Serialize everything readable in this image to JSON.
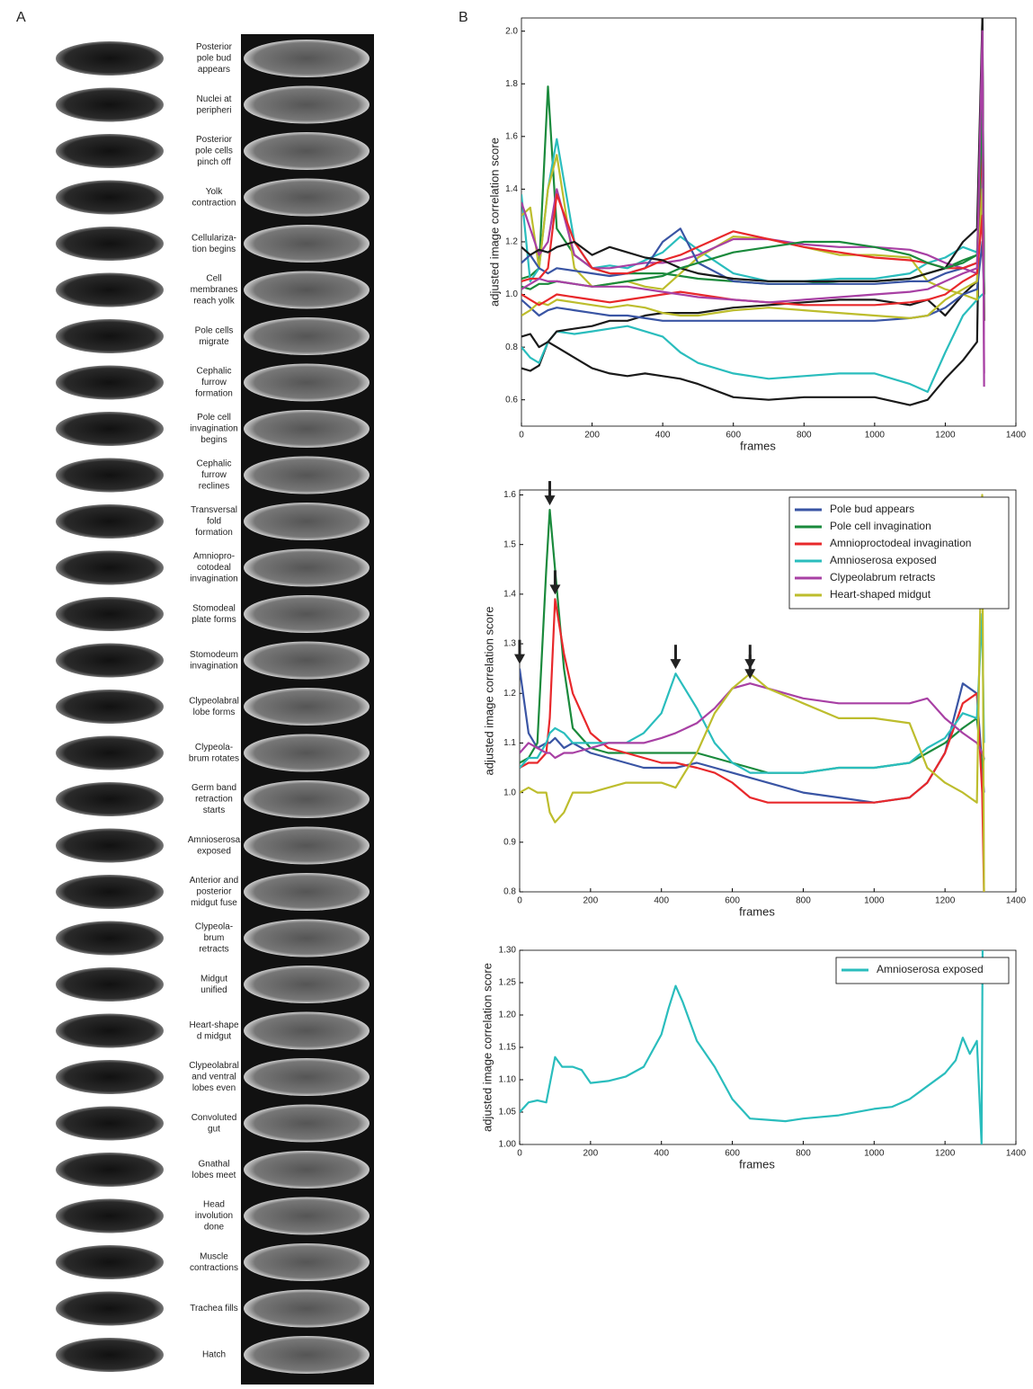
{
  "panel_labels": [
    "A",
    "B"
  ],
  "stages": [
    [
      "Posterior",
      "pole bud",
      "appears"
    ],
    [
      "Nuclei at",
      "peripheri"
    ],
    [
      "Posterior",
      "pole cells",
      "pinch off"
    ],
    [
      "Yolk",
      "contraction"
    ],
    [
      "Cellulariza-",
      "tion begins"
    ],
    [
      "Cell",
      "membranes",
      "reach yolk"
    ],
    [
      "Pole cells",
      "migrate"
    ],
    [
      "Cephalic",
      "furrow",
      "formation"
    ],
    [
      "Pole cell",
      "invagination",
      "begins"
    ],
    [
      "Cephalic",
      "furrow",
      "reclines"
    ],
    [
      "Transversal",
      "fold",
      "formation"
    ],
    [
      "Amniopro-",
      "cotodeal",
      "invagination"
    ],
    [
      "Stomodeal",
      "plate forms"
    ],
    [
      "Stomodeum",
      "invagination"
    ],
    [
      "Clypeolabral",
      "lobe forms"
    ],
    [
      "Clypeola-",
      "brum rotates"
    ],
    [
      "Germ band",
      "retraction",
      "starts"
    ],
    [
      "Amnioserosa",
      "exposed"
    ],
    [
      "Anterior and",
      "posterior",
      "midgut fuse"
    ],
    [
      "Clypeola-",
      "brum",
      "retracts"
    ],
    [
      "Midgut",
      "unified"
    ],
    [
      "Heart-shape",
      "d midgut"
    ],
    [
      "Clypeolabral",
      "and ventral",
      "lobes even"
    ],
    [
      "Convoluted",
      "gut"
    ],
    [
      "Gnathal",
      "lobes meet"
    ],
    [
      "Head",
      "involution",
      "done"
    ],
    [
      "Muscle",
      "contractions"
    ],
    [
      "Trachea fills"
    ],
    [
      "Hatch"
    ]
  ],
  "chart_data": [
    {
      "type": "line",
      "xlabel": "frames",
      "ylabel": "adjusted image correlation score",
      "xlim": [
        0,
        1400
      ],
      "ylim": [
        0.5,
        2.05
      ],
      "xticks": [
        0,
        200,
        400,
        600,
        800,
        1000,
        1200,
        1400
      ],
      "yticks": [
        0.6,
        0.8,
        {
          "value": 1.0,
          "label": "1.0"
        },
        1.2,
        1.4,
        1.6,
        1.8,
        {
          "value": 2.0,
          "label": "2.0"
        }
      ],
      "x": [
        0,
        25,
        50,
        75,
        100,
        150,
        200,
        250,
        300,
        350,
        400,
        450,
        500,
        600,
        700,
        800,
        900,
        1000,
        1100,
        1150,
        1200,
        1250,
        1290,
        1305,
        1310
      ],
      "series": [
        {
          "color": "#1a1a1a",
          "values": [
            0.72,
            0.71,
            0.73,
            0.82,
            0.8,
            0.76,
            0.72,
            0.7,
            0.69,
            0.7,
            0.69,
            0.68,
            0.66,
            0.61,
            0.6,
            0.61,
            0.61,
            0.61,
            0.58,
            0.6,
            0.68,
            0.75,
            0.82,
            2.05,
            0.9
          ]
        },
        {
          "color": "#2abdbd",
          "values": [
            0.8,
            0.76,
            0.74,
            0.82,
            0.86,
            0.85,
            0.86,
            0.87,
            0.88,
            0.86,
            0.84,
            0.78,
            0.74,
            0.7,
            0.68,
            0.69,
            0.7,
            0.7,
            0.66,
            0.63,
            0.78,
            0.92,
            0.98,
            1.0,
            1.0
          ]
        },
        {
          "color": "#1a1a1a",
          "values": [
            0.84,
            0.85,
            0.8,
            0.82,
            0.86,
            0.87,
            0.88,
            0.9,
            0.9,
            0.92,
            0.93,
            0.93,
            0.93,
            0.95,
            0.96,
            0.97,
            0.98,
            0.98,
            0.96,
            0.98,
            0.92,
            1.0,
            1.05,
            1.5,
            1.0
          ]
        },
        {
          "color": "#1a8a3c",
          "values": [
            1.06,
            1.07,
            1.1,
            1.79,
            1.25,
            1.15,
            1.1,
            1.08,
            1.08,
            1.08,
            1.08,
            1.07,
            1.06,
            1.05,
            1.04,
            1.04,
            1.05,
            1.05,
            1.06,
            1.08,
            1.1,
            1.13,
            1.15,
            1.8,
            1.0
          ]
        },
        {
          "color": "#2abdbd",
          "values": [
            1.38,
            1.05,
            1.1,
            1.4,
            1.59,
            1.2,
            1.1,
            1.11,
            1.1,
            1.13,
            1.16,
            1.22,
            1.17,
            1.08,
            1.05,
            1.05,
            1.06,
            1.06,
            1.08,
            1.12,
            1.14,
            1.18,
            1.16,
            1.5,
            1.0
          ]
        },
        {
          "color": "#bdbd2d",
          "values": [
            1.3,
            1.33,
            1.1,
            1.4,
            1.53,
            1.1,
            1.03,
            1.04,
            1.05,
            1.03,
            1.02,
            1.08,
            1.14,
            1.22,
            1.21,
            1.18,
            1.15,
            1.15,
            1.14,
            1.05,
            1.02,
            1.0,
            0.98,
            1.9,
            0.9
          ]
        },
        {
          "color": "#a840a4",
          "values": [
            1.35,
            1.25,
            1.15,
            1.2,
            1.4,
            1.15,
            1.1,
            1.1,
            1.11,
            1.12,
            1.12,
            1.13,
            1.15,
            1.21,
            1.21,
            1.19,
            1.18,
            1.18,
            1.17,
            1.15,
            1.12,
            1.1,
            1.08,
            2.0,
            0.65
          ]
        },
        {
          "color": "#3a55a4",
          "values": [
            1.12,
            1.15,
            1.1,
            1.08,
            1.1,
            1.09,
            1.08,
            1.07,
            1.08,
            1.1,
            1.2,
            1.25,
            1.12,
            1.05,
            1.04,
            1.04,
            1.04,
            1.04,
            1.05,
            1.05,
            1.08,
            1.1,
            1.12,
            1.3,
            1.0
          ]
        },
        {
          "color": "#e8282b",
          "values": [
            1.05,
            1.06,
            1.06,
            1.1,
            1.38,
            1.2,
            1.1,
            1.08,
            1.08,
            1.1,
            1.13,
            1.15,
            1.18,
            1.24,
            1.21,
            1.18,
            1.16,
            1.14,
            1.13,
            1.12,
            1.1,
            1.1,
            1.12,
            1.6,
            1.0
          ]
        },
        {
          "color": "#1a1a1a",
          "values": [
            1.18,
            1.15,
            1.17,
            1.16,
            1.18,
            1.2,
            1.15,
            1.18,
            1.16,
            1.14,
            1.13,
            1.1,
            1.08,
            1.06,
            1.05,
            1.05,
            1.05,
            1.05,
            1.06,
            1.08,
            1.1,
            1.2,
            1.25,
            2.05,
            0.9
          ]
        },
        {
          "color": "#3a55a4",
          "values": [
            0.98,
            0.95,
            0.92,
            0.94,
            0.95,
            0.94,
            0.93,
            0.92,
            0.92,
            0.91,
            0.9,
            0.9,
            0.9,
            0.9,
            0.9,
            0.9,
            0.9,
            0.9,
            0.91,
            0.92,
            0.95,
            1.0,
            1.02,
            1.2,
            1.0
          ]
        },
        {
          "color": "#bdbd2d",
          "values": [
            0.92,
            0.94,
            0.97,
            0.96,
            0.98,
            0.97,
            0.96,
            0.95,
            0.96,
            0.95,
            0.93,
            0.92,
            0.92,
            0.94,
            0.95,
            0.94,
            0.93,
            0.92,
            0.91,
            0.92,
            0.98,
            1.02,
            1.05,
            1.4,
            1.0
          ]
        },
        {
          "color": "#e8282b",
          "values": [
            1.0,
            0.98,
            0.96,
            0.98,
            1.0,
            0.99,
            0.98,
            0.97,
            0.98,
            0.99,
            1.0,
            1.01,
            1.0,
            0.98,
            0.97,
            0.96,
            0.96,
            0.96,
            0.97,
            0.98,
            1.0,
            1.05,
            1.08,
            1.3,
            1.0
          ]
        },
        {
          "color": "#1a8a3c",
          "values": [
            1.03,
            1.02,
            1.04,
            1.04,
            1.05,
            1.04,
            1.03,
            1.04,
            1.05,
            1.06,
            1.07,
            1.1,
            1.12,
            1.16,
            1.18,
            1.2,
            1.2,
            1.18,
            1.15,
            1.12,
            1.1,
            1.12,
            1.15,
            1.7,
            1.0
          ]
        },
        {
          "color": "#a840a4",
          "values": [
            1.02,
            1.04,
            1.06,
            1.05,
            1.05,
            1.04,
            1.03,
            1.03,
            1.03,
            1.02,
            1.01,
            1.0,
            0.99,
            0.98,
            0.97,
            0.98,
            0.99,
            1.0,
            1.01,
            1.02,
            1.05,
            1.08,
            1.1,
            2.0,
            0.7
          ]
        }
      ]
    },
    {
      "type": "line",
      "xlabel": "frames",
      "ylabel": "adjusted image correlation score",
      "xlim": [
        0,
        1400
      ],
      "ylim": [
        0.8,
        1.61
      ],
      "xticks": [
        0,
        200,
        400,
        600,
        800,
        1000,
        1200,
        1400
      ],
      "yticks": [
        0.8,
        0.9,
        {
          "value": 1.0,
          "label": "1.0"
        },
        1.1,
        1.2,
        1.3,
        1.4,
        1.5,
        1.6
      ],
      "legend": "upper right",
      "peak_markers": "arrow",
      "x": [
        0,
        25,
        50,
        75,
        85,
        100,
        125,
        150,
        200,
        250,
        300,
        350,
        400,
        440,
        500,
        550,
        600,
        650,
        700,
        800,
        900,
        1000,
        1100,
        1150,
        1200,
        1250,
        1290,
        1305,
        1310
      ],
      "series": [
        {
          "name": "Pole bud appears",
          "color": "#3a55a4",
          "values": [
            1.25,
            1.12,
            1.09,
            1.1,
            1.1,
            1.11,
            1.09,
            1.1,
            1.08,
            1.07,
            1.06,
            1.05,
            1.05,
            1.05,
            1.06,
            1.05,
            1.04,
            1.03,
            1.02,
            1.0,
            0.99,
            0.98,
            0.99,
            1.02,
            1.08,
            1.22,
            1.2,
            1.05,
            1.0
          ]
        },
        {
          "name": "Pole cell invagination",
          "color": "#1a8a3c",
          "values": [
            1.06,
            1.07,
            1.1,
            1.45,
            1.57,
            1.45,
            1.25,
            1.13,
            1.09,
            1.08,
            1.08,
            1.08,
            1.08,
            1.08,
            1.08,
            1.07,
            1.06,
            1.05,
            1.04,
            1.04,
            1.05,
            1.05,
            1.06,
            1.08,
            1.1,
            1.13,
            1.15,
            1.05,
            1.07
          ]
        },
        {
          "name": "Amnioproctodeal invagination",
          "color": "#e8282b",
          "values": [
            1.05,
            1.06,
            1.06,
            1.08,
            1.15,
            1.39,
            1.28,
            1.2,
            1.12,
            1.09,
            1.08,
            1.07,
            1.06,
            1.06,
            1.05,
            1.04,
            1.02,
            0.99,
            0.98,
            0.98,
            0.98,
            0.98,
            0.99,
            1.02,
            1.08,
            1.18,
            1.2,
            1.0,
            0.8
          ]
        },
        {
          "name": "Amnioserosa exposed",
          "color": "#2abdbd",
          "values": [
            1.05,
            1.07,
            1.07,
            1.1,
            1.12,
            1.13,
            1.12,
            1.1,
            1.1,
            1.1,
            1.1,
            1.12,
            1.16,
            1.24,
            1.17,
            1.1,
            1.06,
            1.04,
            1.04,
            1.04,
            1.05,
            1.05,
            1.06,
            1.09,
            1.11,
            1.16,
            1.15,
            1.36,
            1.1
          ]
        },
        {
          "name": "Clypeolabrum retracts",
          "color": "#a840a4",
          "values": [
            1.08,
            1.1,
            1.09,
            1.08,
            1.08,
            1.07,
            1.08,
            1.08,
            1.09,
            1.1,
            1.1,
            1.1,
            1.11,
            1.12,
            1.14,
            1.17,
            1.21,
            1.22,
            1.21,
            1.19,
            1.18,
            1.18,
            1.18,
            1.19,
            1.15,
            1.12,
            1.1,
            1.08,
            1.07
          ]
        },
        {
          "name": "Heart-shaped midgut",
          "color": "#bdbd2d",
          "values": [
            1.0,
            1.01,
            1.0,
            1.0,
            0.96,
            0.94,
            0.96,
            1.0,
            1.0,
            1.01,
            1.02,
            1.02,
            1.02,
            1.01,
            1.08,
            1.16,
            1.21,
            1.24,
            1.21,
            1.18,
            1.15,
            1.15,
            1.14,
            1.05,
            1.02,
            1.0,
            0.98,
            1.6,
            0.8
          ]
        }
      ]
    },
    {
      "type": "line",
      "xlabel": "frames",
      "ylabel": "adjusted image correlation score",
      "xlim": [
        0,
        1400
      ],
      "ylim": [
        1.0,
        1.3
      ],
      "xticks": [
        0,
        200,
        400,
        600,
        800,
        1000,
        1200,
        1400
      ],
      "yticks": [
        {
          "value": 1.0,
          "label": "1.00"
        },
        1.05,
        {
          "value": 1.1,
          "label": "1.10"
        },
        1.15,
        {
          "value": 1.2,
          "label": "1.20"
        },
        1.25,
        {
          "value": 1.3,
          "label": "1.30"
        }
      ],
      "legend": "upper right",
      "x": [
        0,
        25,
        50,
        75,
        100,
        120,
        150,
        175,
        200,
        250,
        300,
        350,
        400,
        420,
        440,
        460,
        500,
        550,
        600,
        650,
        700,
        750,
        800,
        900,
        1000,
        1050,
        1100,
        1150,
        1200,
        1230,
        1250,
        1270,
        1290,
        1303,
        1307
      ],
      "series": [
        {
          "name": "Amnioserosa exposed",
          "color": "#2abdbd",
          "values": [
            1.05,
            1.065,
            1.068,
            1.065,
            1.135,
            1.12,
            1.12,
            1.115,
            1.095,
            1.098,
            1.105,
            1.12,
            1.17,
            1.21,
            1.245,
            1.22,
            1.16,
            1.12,
            1.07,
            1.04,
            1.038,
            1.036,
            1.04,
            1.045,
            1.055,
            1.058,
            1.07,
            1.09,
            1.11,
            1.13,
            1.165,
            1.14,
            1.16,
            1.0,
            1.4
          ]
        }
      ]
    }
  ]
}
